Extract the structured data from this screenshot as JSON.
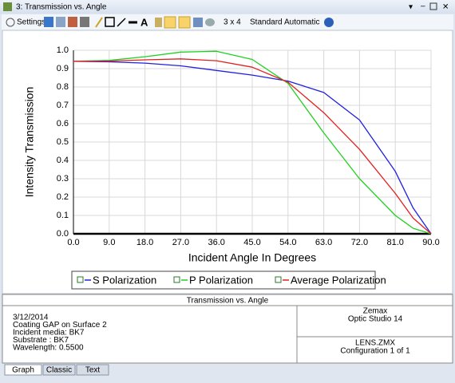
{
  "window": {
    "title": "3: Transmission vs. Angle"
  },
  "toolbar": {
    "settings": "Settings",
    "layout": "3 x 4",
    "style": "Standard",
    "scale": "Automatic"
  },
  "chart_data": {
    "type": "line",
    "xlabel": "Incident Angle In Degrees",
    "ylabel": "Intensity Transmission",
    "x": [
      0,
      9,
      18,
      27,
      36,
      45,
      54,
      63,
      72,
      81,
      85.5,
      90
    ],
    "series": [
      {
        "name": "S Polarization",
        "color": "#2020e0",
        "values": [
          0.94,
          0.937,
          0.93,
          0.915,
          0.89,
          0.865,
          0.832,
          0.77,
          0.62,
          0.34,
          0.14,
          0
        ]
      },
      {
        "name": "P Polarization",
        "color": "#20d020",
        "values": [
          0.94,
          0.945,
          0.965,
          0.99,
          0.995,
          0.95,
          0.82,
          0.55,
          0.3,
          0.1,
          0.03,
          0
        ]
      },
      {
        "name": "Average Polarization",
        "color": "#e02020",
        "values": [
          0.94,
          0.941,
          0.948,
          0.953,
          0.943,
          0.908,
          0.826,
          0.66,
          0.46,
          0.22,
          0.085,
          0
        ]
      }
    ],
    "xlim": [
      0,
      90
    ],
    "xticks": [
      {
        "value": 0,
        "label": "0.0"
      },
      {
        "value": 9,
        "label": "9.0"
      },
      {
        "value": 18,
        "label": "18.0"
      },
      {
        "value": 27,
        "label": "27.0"
      },
      {
        "value": 36,
        "label": "36.0"
      },
      {
        "value": 45,
        "label": "45.0"
      },
      {
        "value": 54,
        "label": "54.0"
      },
      {
        "value": 63,
        "label": "63.0"
      },
      {
        "value": 72,
        "label": "72.0"
      },
      {
        "value": 81,
        "label": "81.0"
      },
      {
        "value": 90,
        "label": "90.0"
      }
    ],
    "ylim": [
      0,
      1
    ],
    "yticks": [
      {
        "value": 0,
        "label": "0.0"
      },
      0.1,
      0.2,
      0.3,
      0.4,
      0.5,
      0.6,
      0.7,
      0.8,
      0.9,
      {
        "value": 1,
        "label": "1.0"
      }
    ],
    "grid": true
  },
  "info": {
    "title": "Transmission vs. Angle",
    "lines": [
      "3/12/2014",
      "Coating GAP on Surface 2",
      "Incident media: BK7",
      "Substrate    : BK7",
      "Wavelength: 0.5500"
    ],
    "company": "Zemax",
    "product": "Optic Studio 14",
    "file": "LENS.ZMX",
    "config": "Configuration 1 of 1"
  },
  "tabs": [
    "Graph",
    "Classic",
    "Text"
  ]
}
